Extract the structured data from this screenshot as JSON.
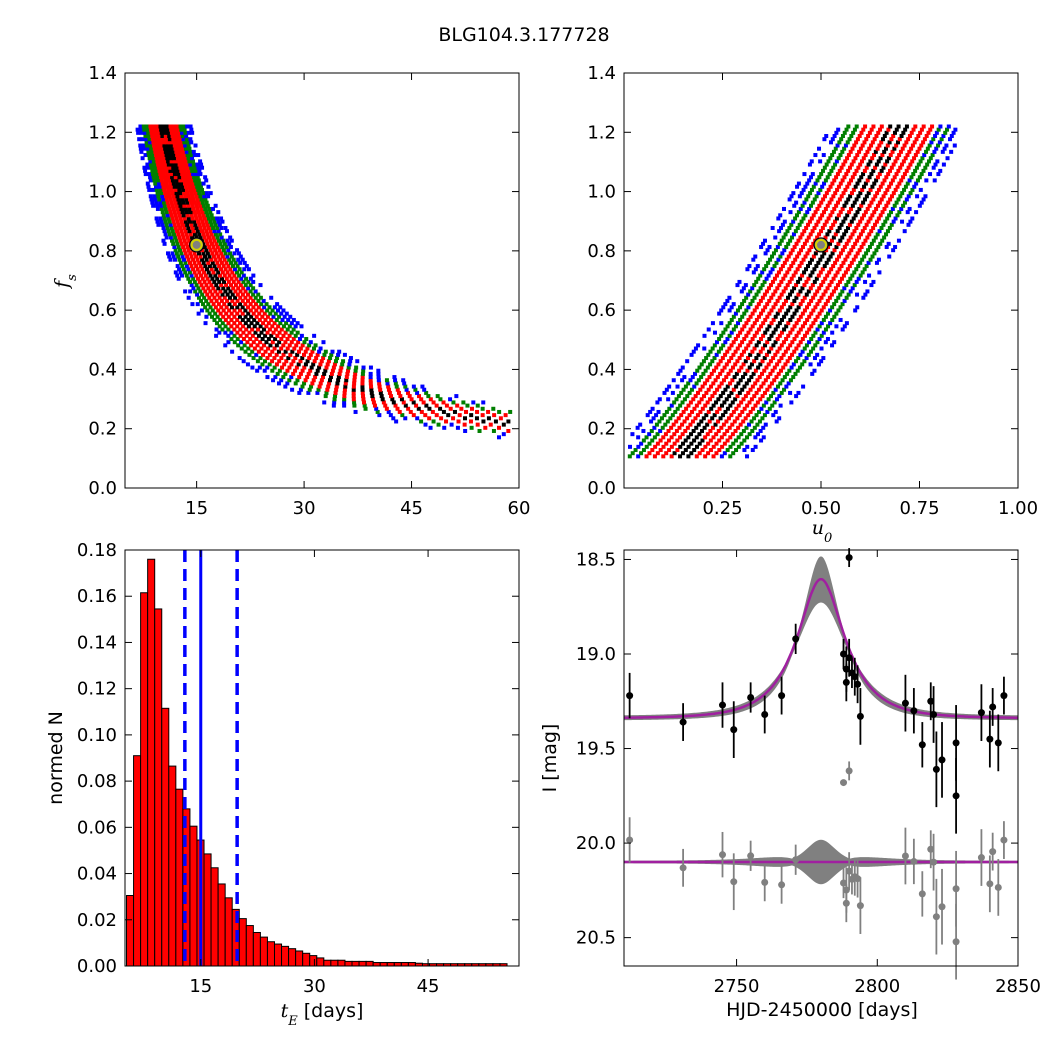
{
  "figure": {
    "title": "BLG104.3.177728"
  },
  "chart_data": [
    {
      "type": "heatmap",
      "panel": "top-left",
      "xlabel": "",
      "ylabel_italic": "f",
      "ylabel_sub": "s",
      "xlim": [
        5,
        60
      ],
      "ylim": [
        0.0,
        1.4
      ],
      "xticks": [
        15,
        30,
        45,
        60
      ],
      "yticks": [
        0.0,
        0.2,
        0.4,
        0.6,
        0.8,
        1.0,
        1.2,
        1.4
      ],
      "grid": false,
      "best_fit": {
        "tE": 15.0,
        "fs": 0.82
      },
      "confidence_levels": [
        {
          "name": "black",
          "color": "#000000"
        },
        {
          "name": "red",
          "color": "#ff0000"
        },
        {
          "name": "green",
          "color": "#007f00"
        },
        {
          "name": "blue",
          "color": "#0000ff"
        }
      ],
      "band_model": {
        "center": "fs ~ 12.3 / tE",
        "fs_range": [
          0.1,
          1.22
        ]
      }
    },
    {
      "type": "heatmap",
      "panel": "top-right",
      "xlabel_italic": "u",
      "xlabel_sub": "0",
      "xlim": [
        0.0,
        1.0
      ],
      "ylim": [
        0.0,
        1.4
      ],
      "xticks": [
        "0.25",
        "0.50",
        "0.75",
        "1.00"
      ],
      "yticks": [
        0.0,
        0.2,
        0.4,
        0.6,
        0.8,
        1.0,
        1.2,
        1.4
      ],
      "grid": false,
      "best_fit": {
        "u0": 0.5,
        "fs": 0.82
      },
      "band_model": {
        "center": "u0 ~ 0.05 + 0.55 * fs^0.8",
        "fs_range": [
          0.1,
          1.22
        ]
      }
    },
    {
      "type": "bar",
      "panel": "bottom-left",
      "xlabel_italic": "t",
      "xlabel_sub": "E",
      "xlabel_rest": " [days]",
      "ylabel": "normed N",
      "xlim": [
        5,
        57
      ],
      "ylim": [
        0.0,
        0.18
      ],
      "xticks": [
        15,
        30,
        45
      ],
      "yticks": [
        "0.00",
        "0.02",
        "0.04",
        "0.06",
        "0.08",
        "0.10",
        "0.12",
        "0.14",
        "0.16",
        "0.18"
      ],
      "bin_width": 0.93,
      "x_start": 5.2,
      "values": [
        0.0305,
        0.091,
        0.1615,
        0.176,
        0.1545,
        0.1115,
        0.0865,
        0.0765,
        0.068,
        0.0605,
        0.0545,
        0.0485,
        0.0425,
        0.0355,
        0.0295,
        0.0245,
        0.0205,
        0.0175,
        0.0145,
        0.0125,
        0.0105,
        0.0095,
        0.0085,
        0.0075,
        0.0065,
        0.0055,
        0.0045,
        0.0035,
        0.0025,
        0.0025,
        0.0025,
        0.002,
        0.002,
        0.002,
        0.002,
        0.0015,
        0.0015,
        0.0015,
        0.0015,
        0.0015,
        0.0015,
        0.0012,
        0.001,
        0.001,
        0.001,
        0.001,
        0.001,
        0.001,
        0.001,
        0.001,
        0.001,
        0.001,
        0.001,
        0.001
      ],
      "bar_color": "#ff0000",
      "median_line": {
        "x": 15.0,
        "color": "#0000ff",
        "style": "solid"
      },
      "bounds_lines": [
        {
          "x": 12.9,
          "color": "#0000ff",
          "style": "dashed"
        },
        {
          "x": 19.8,
          "color": "#0000ff",
          "style": "dashed"
        }
      ]
    },
    {
      "type": "scatter",
      "panel": "bottom-right",
      "xlabel": "HJD-2450000 [days]",
      "ylabel": "I [mag]",
      "xlim": [
        2710,
        2850
      ],
      "ylim": [
        20.65,
        18.45
      ],
      "xticks": [
        2750,
        2800,
        2850
      ],
      "yticks": [
        "18.5",
        "19.0",
        "19.5",
        "20.0",
        "20.5"
      ],
      "model": {
        "t0": 2780.0,
        "tE": 15.0,
        "u0": 0.5,
        "fs": 0.82,
        "base_mag": 19.34,
        "color": "#a020a0"
      },
      "residual_offset": 20.1,
      "data_points": [
        {
          "t": 2712,
          "mag": 19.22,
          "err": 0.12
        },
        {
          "t": 2731,
          "mag": 19.36,
          "err": 0.1
        },
        {
          "t": 2745,
          "mag": 19.27,
          "err": 0.12
        },
        {
          "t": 2749,
          "mag": 19.4,
          "err": 0.15
        },
        {
          "t": 2755,
          "mag": 19.23,
          "err": 0.08
        },
        {
          "t": 2760,
          "mag": 19.32,
          "err": 0.1
        },
        {
          "t": 2766,
          "mag": 19.22,
          "err": 0.1
        },
        {
          "t": 2771,
          "mag": 18.92,
          "err": 0.08
        },
        {
          "t": 2788,
          "mag": 19.0,
          "err": 0.08
        },
        {
          "t": 2789,
          "mag": 19.08,
          "err": 0.12
        },
        {
          "t": 2789,
          "mag": 19.15,
          "err": 0.1
        },
        {
          "t": 2790,
          "mag": 18.49,
          "err": 0.05
        },
        {
          "t": 2790,
          "mag": 19.02,
          "err": 0.1
        },
        {
          "t": 2791,
          "mag": 19.1,
          "err": 0.08
        },
        {
          "t": 2792,
          "mag": 19.12,
          "err": 0.1
        },
        {
          "t": 2793,
          "mag": 19.16,
          "err": 0.1
        },
        {
          "t": 2794,
          "mag": 19.33,
          "err": 0.15
        },
        {
          "t": 2810,
          "mag": 19.26,
          "err": 0.15
        },
        {
          "t": 2813,
          "mag": 19.3,
          "err": 0.12
        },
        {
          "t": 2816,
          "mag": 19.48,
          "err": 0.12
        },
        {
          "t": 2819,
          "mag": 19.25,
          "err": 0.1
        },
        {
          "t": 2820,
          "mag": 19.32,
          "err": 0.15
        },
        {
          "t": 2821,
          "mag": 19.61,
          "err": 0.2
        },
        {
          "t": 2823,
          "mag": 19.56,
          "err": 0.2
        },
        {
          "t": 2828,
          "mag": 19.47,
          "err": 0.2
        },
        {
          "t": 2828,
          "mag": 19.75,
          "err": 0.2
        },
        {
          "t": 2837,
          "mag": 19.31,
          "err": 0.15
        },
        {
          "t": 2840,
          "mag": 19.45,
          "err": 0.15
        },
        {
          "t": 2841,
          "mag": 19.28,
          "err": 0.1
        },
        {
          "t": 2843,
          "mag": 19.47,
          "err": 0.15
        },
        {
          "t": 2845,
          "mag": 19.22,
          "err": 0.1
        }
      ],
      "outlier_points": [
        {
          "t": 2788,
          "mag": 19.68
        }
      ],
      "colors": {
        "data": "#000000",
        "residual": "#808080",
        "model_band": "#808080"
      }
    }
  ]
}
